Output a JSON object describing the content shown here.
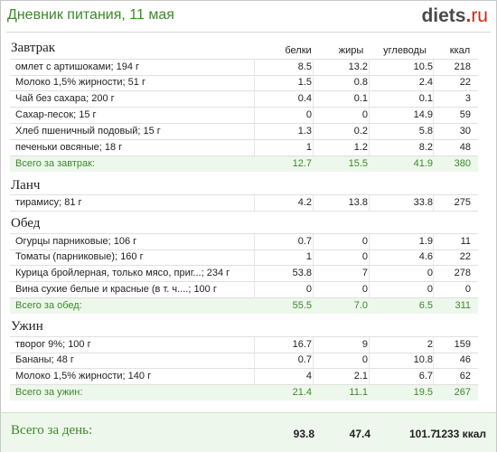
{
  "header": {
    "title": "Дневник питания, 11 мая",
    "logo_name": "diets",
    "logo_dot": ".",
    "logo_tld": "ru"
  },
  "columns": {
    "protein": "белки",
    "fat": "жиры",
    "carbs": "углеводы",
    "kcal": "ккал"
  },
  "meals": [
    {
      "name": "Завтрак",
      "items": [
        {
          "name": "омлет с артишоками; 194 г",
          "p": "8.5",
          "f": "13.2",
          "c": "10.5",
          "k": "218"
        },
        {
          "name": "Молоко 1,5% жирности; 51 г",
          "p": "1.5",
          "f": "0.8",
          "c": "2.4",
          "k": "22"
        },
        {
          "name": "Чай без сахара; 200 г",
          "p": "0.4",
          "f": "0.1",
          "c": "0.1",
          "k": "3"
        },
        {
          "name": "Сахар-песок; 15 г",
          "p": "0",
          "f": "0",
          "c": "14.9",
          "k": "59"
        },
        {
          "name": "Хлеб пшеничный подовый; 15 г",
          "p": "1.3",
          "f": "0.2",
          "c": "5.8",
          "k": "30"
        },
        {
          "name": "печеньки овсяные; 18 г",
          "p": "1",
          "f": "1.2",
          "c": "8.2",
          "k": "48"
        }
      ],
      "total": {
        "name": "Всего за завтрак:",
        "p": "12.7",
        "f": "15.5",
        "c": "41.9",
        "k": "380"
      }
    },
    {
      "name": "Ланч",
      "items": [
        {
          "name": "тирамису; 81 г",
          "p": "4.2",
          "f": "13.8",
          "c": "33.8",
          "k": "275"
        }
      ]
    },
    {
      "name": "Обед",
      "items": [
        {
          "name": "Огурцы парниковые; 106 г",
          "p": "0.7",
          "f": "0",
          "c": "1.9",
          "k": "11"
        },
        {
          "name": "Томаты (парниковые); 160 г",
          "p": "1",
          "f": "0",
          "c": "4.6",
          "k": "22"
        },
        {
          "name": "Курица бройлерная, только мясо, приг...; 234 г",
          "p": "53.8",
          "f": "7",
          "c": "0",
          "k": "278"
        },
        {
          "name": "Вина сухие белые и красные (в т. ч....; 100 г",
          "p": "0",
          "f": "0",
          "c": "0",
          "k": "0"
        }
      ],
      "total": {
        "name": "Всего за обед:",
        "p": "55.5",
        "f": "7.0",
        "c": "6.5",
        "k": "311"
      }
    },
    {
      "name": "Ужин",
      "items": [
        {
          "name": "творог 9%; 100 г",
          "p": "16.7",
          "f": "9",
          "c": "2",
          "k": "159"
        },
        {
          "name": "Бананы; 48 г",
          "p": "0.7",
          "f": "0",
          "c": "10.8",
          "k": "46"
        },
        {
          "name": "Молоко 1,5% жирности; 140 г",
          "p": "4",
          "f": "2.1",
          "c": "6.7",
          "k": "62"
        }
      ],
      "total": {
        "name": "Всего за ужин:",
        "p": "21.4",
        "f": "11.1",
        "c": "19.5",
        "k": "267"
      }
    }
  ],
  "day_total": {
    "label": "Всего за день:",
    "p": "93.8",
    "f": "47.4",
    "c": "101.7",
    "k": "1233 ккал"
  }
}
